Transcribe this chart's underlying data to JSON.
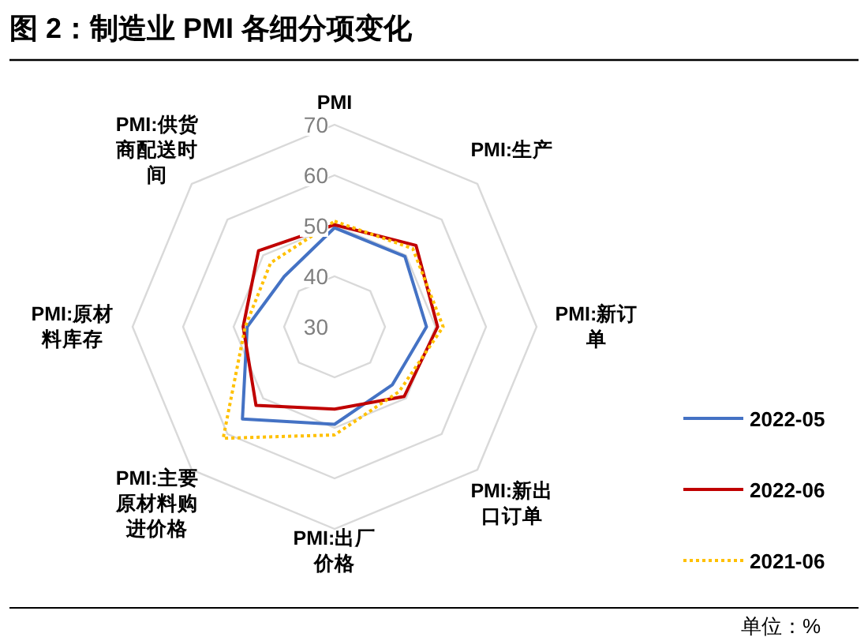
{
  "chart_data": {
    "type": "radar",
    "title": "图 2：制造业 PMI 各细分项变化",
    "categories": [
      "PMI",
      "PMI:生产",
      "PMI:新订单",
      "PMI:新出口订单",
      "PMI:出厂价格",
      "PMI:主要原材料购进价格",
      "PMI:原材料库存",
      "PMI:供货商配送时间"
    ],
    "series": [
      {
        "name": "2022-05",
        "color": "#4472c4",
        "line_style": "solid",
        "values": [
          49.6,
          49.7,
          48.2,
          46.2,
          49.3,
          55.8,
          47.3,
          44.1
        ]
      },
      {
        "name": "2022-06",
        "color": "#c00000",
        "line_style": "solid",
        "values": [
          50.2,
          52.8,
          50.4,
          49.5,
          46.3,
          52.0,
          48.1,
          51.3
        ]
      },
      {
        "name": "2021-06",
        "color": "#ffc000",
        "line_style": "dotted",
        "values": [
          50.9,
          51.9,
          51.5,
          48.1,
          51.4,
          61.2,
          47.7,
          47.9
        ]
      }
    ],
    "ylim": [
      30,
      70
    ],
    "yticks": [
      30,
      40,
      50,
      60,
      70
    ],
    "grid": true,
    "legend": "right",
    "annotations": [
      "单位：%"
    ]
  }
}
